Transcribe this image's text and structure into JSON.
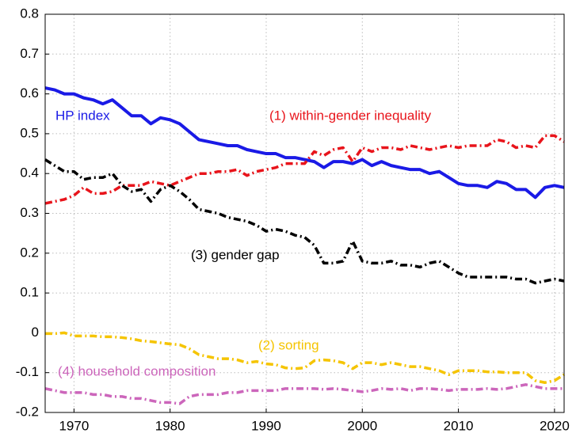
{
  "chart_data": {
    "type": "line",
    "x": [
      1967,
      1968,
      1969,
      1970,
      1971,
      1972,
      1973,
      1974,
      1975,
      1976,
      1977,
      1978,
      1979,
      1980,
      1981,
      1982,
      1983,
      1984,
      1985,
      1986,
      1987,
      1988,
      1989,
      1990,
      1991,
      1992,
      1993,
      1994,
      1995,
      1996,
      1997,
      1998,
      1999,
      2000,
      2001,
      2002,
      2003,
      2004,
      2005,
      2006,
      2007,
      2008,
      2009,
      2010,
      2011,
      2012,
      2013,
      2014,
      2015,
      2016,
      2017,
      2018,
      2019,
      2020,
      2021
    ],
    "xlim": [
      1967,
      2021
    ],
    "xticks": [
      1970,
      1980,
      1990,
      2000,
      2010,
      2020
    ],
    "ylim": [
      -0.2,
      0.8
    ],
    "yticks": [
      -0.2,
      -0.1,
      0,
      0.1,
      0.2,
      0.3,
      0.4,
      0.5,
      0.6,
      0.7,
      0.8
    ],
    "grid": true,
    "series": [
      {
        "name": "HP index",
        "color": "#1a1ae6",
        "dash": "solid",
        "values": [
          0.615,
          0.61,
          0.6,
          0.6,
          0.59,
          0.585,
          0.575,
          0.585,
          0.565,
          0.545,
          0.545,
          0.525,
          0.54,
          0.535,
          0.525,
          0.505,
          0.485,
          0.48,
          0.475,
          0.47,
          0.47,
          0.46,
          0.455,
          0.45,
          0.45,
          0.44,
          0.44,
          0.435,
          0.43,
          0.415,
          0.43,
          0.43,
          0.425,
          0.435,
          0.42,
          0.43,
          0.42,
          0.415,
          0.41,
          0.41,
          0.4,
          0.405,
          0.39,
          0.375,
          0.37,
          0.37,
          0.365,
          0.38,
          0.375,
          0.36,
          0.36,
          0.34,
          0.365,
          0.37,
          0.365
        ]
      },
      {
        "name": "(1) within-gender inequality",
        "color": "#e8141b",
        "dash": "dashdot",
        "values": [
          0.325,
          0.33,
          0.335,
          0.345,
          0.365,
          0.35,
          0.35,
          0.355,
          0.37,
          0.37,
          0.37,
          0.38,
          0.375,
          0.37,
          0.38,
          0.39,
          0.4,
          0.4,
          0.405,
          0.405,
          0.41,
          0.395,
          0.405,
          0.41,
          0.415,
          0.425,
          0.425,
          0.425,
          0.455,
          0.445,
          0.46,
          0.465,
          0.43,
          0.465,
          0.455,
          0.465,
          0.465,
          0.46,
          0.47,
          0.465,
          0.46,
          0.465,
          0.47,
          0.465,
          0.47,
          0.47,
          0.47,
          0.485,
          0.48,
          0.465,
          0.47,
          0.465,
          0.495,
          0.495,
          0.48
        ]
      },
      {
        "name": "(3) gender gap",
        "color": "#000000",
        "dash": "dashdot",
        "values": [
          0.435,
          0.42,
          0.405,
          0.405,
          0.385,
          0.39,
          0.39,
          0.4,
          0.37,
          0.355,
          0.36,
          0.33,
          0.36,
          0.37,
          0.355,
          0.335,
          0.31,
          0.305,
          0.3,
          0.29,
          0.285,
          0.28,
          0.27,
          0.255,
          0.26,
          0.255,
          0.245,
          0.24,
          0.22,
          0.175,
          0.175,
          0.18,
          0.23,
          0.18,
          0.175,
          0.175,
          0.18,
          0.17,
          0.17,
          0.165,
          0.175,
          0.18,
          0.165,
          0.15,
          0.14,
          0.14,
          0.14,
          0.14,
          0.14,
          0.135,
          0.135,
          0.125,
          0.13,
          0.135,
          0.13
        ]
      },
      {
        "name": "(2) sorting",
        "color": "#f5c400",
        "dash": "dashdot",
        "values": [
          -0.002,
          -0.002,
          0,
          -0.008,
          -0.008,
          -0.008,
          -0.01,
          -0.01,
          -0.012,
          -0.015,
          -0.02,
          -0.022,
          -0.025,
          -0.028,
          -0.03,
          -0.04,
          -0.055,
          -0.06,
          -0.065,
          -0.065,
          -0.068,
          -0.075,
          -0.072,
          -0.078,
          -0.08,
          -0.088,
          -0.09,
          -0.088,
          -0.07,
          -0.068,
          -0.07,
          -0.075,
          -0.09,
          -0.075,
          -0.075,
          -0.08,
          -0.075,
          -0.08,
          -0.085,
          -0.085,
          -0.09,
          -0.095,
          -0.105,
          -0.095,
          -0.095,
          -0.095,
          -0.098,
          -0.098,
          -0.1,
          -0.1,
          -0.1,
          -0.12,
          -0.125,
          -0.12,
          -0.105
        ]
      },
      {
        "name": "(4) household composition",
        "color": "#cc66bb",
        "dash": "dashdot",
        "values": [
          -0.14,
          -0.145,
          -0.15,
          -0.15,
          -0.15,
          -0.155,
          -0.155,
          -0.16,
          -0.16,
          -0.165,
          -0.165,
          -0.17,
          -0.175,
          -0.175,
          -0.178,
          -0.16,
          -0.155,
          -0.155,
          -0.155,
          -0.15,
          -0.15,
          -0.145,
          -0.145,
          -0.145,
          -0.145,
          -0.14,
          -0.14,
          -0.14,
          -0.14,
          -0.142,
          -0.14,
          -0.142,
          -0.145,
          -0.148,
          -0.145,
          -0.14,
          -0.142,
          -0.14,
          -0.145,
          -0.14,
          -0.14,
          -0.142,
          -0.145,
          -0.142,
          -0.142,
          -0.142,
          -0.14,
          -0.142,
          -0.14,
          -0.135,
          -0.13,
          -0.135,
          -0.14,
          -0.14,
          -0.14
        ]
      }
    ]
  }
}
